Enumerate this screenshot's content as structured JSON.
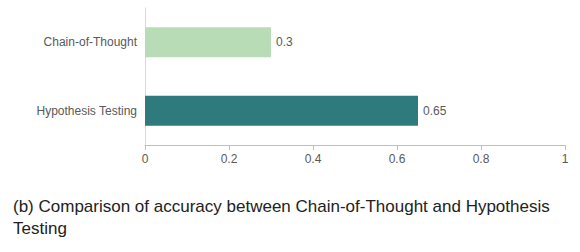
{
  "chart_data": {
    "type": "bar",
    "orientation": "horizontal",
    "title": "(b) Comparison of accuracy between Chain-of-Thought and Hypothesis Testing",
    "categories": [
      "Chain-of-Thought",
      "Hypothesis Testing"
    ],
    "values": [
      0.3,
      0.65
    ],
    "colors": [
      "#b8dcb5",
      "#2f7a7c"
    ],
    "xlim": [
      0,
      1
    ],
    "xticks": [
      0,
      0.2,
      0.4,
      0.6,
      0.8,
      1
    ],
    "grid": false,
    "data_labels": true
  }
}
